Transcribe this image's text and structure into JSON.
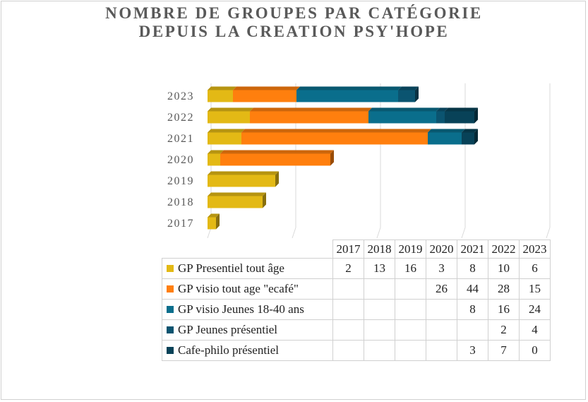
{
  "chart_data": {
    "type": "bar",
    "orientation": "horizontal",
    "stacked": true,
    "title": "NOMBRE DE GROUPES PAR CATÉGORIE",
    "subtitle": "DEPUIS LA CREATION PSY'HOPE",
    "categories": [
      "2017",
      "2018",
      "2019",
      "2020",
      "2021",
      "2022",
      "2023"
    ],
    "xlim": [
      0,
      80
    ],
    "grid": true,
    "legend": "data-table",
    "series": [
      {
        "name": "GP Presentiel tout âge",
        "color": "#E3B915",
        "values": [
          2,
          13,
          16,
          3,
          8,
          10,
          6
        ]
      },
      {
        "name": "GP visio tout age \"ecafé\"",
        "color": "#FF7F0E",
        "values": [
          null,
          null,
          null,
          26,
          44,
          28,
          15
        ]
      },
      {
        "name": "GP visio Jeunes 18-40 ans",
        "color": "#0A6E8C",
        "values": [
          null,
          null,
          null,
          null,
          8,
          16,
          24
        ]
      },
      {
        "name": "GP Jeunes présentiel",
        "color": "#0B5470",
        "values": [
          null,
          null,
          null,
          null,
          null,
          2,
          4
        ]
      },
      {
        "name": "Cafe-philo présentiel",
        "color": "#084258",
        "values": [
          null,
          null,
          null,
          null,
          3,
          7,
          0
        ]
      }
    ]
  }
}
